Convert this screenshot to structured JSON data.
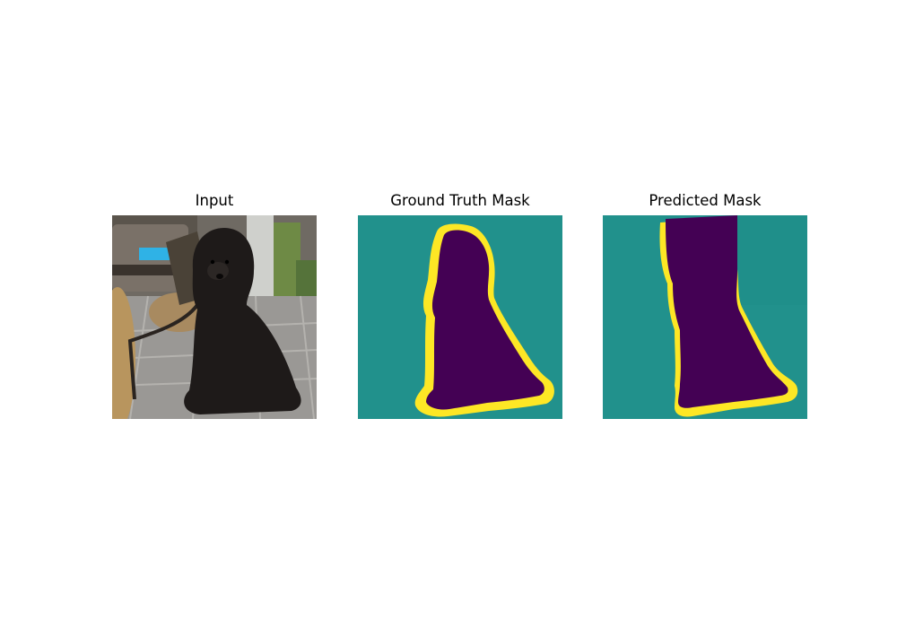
{
  "figure": {
    "panels": [
      {
        "title": "Input"
      },
      {
        "title": "Ground Truth Mask"
      },
      {
        "title": "Predicted Mask"
      }
    ]
  },
  "colors": {
    "background_class": "#21918c",
    "foreground_class": "#440154",
    "boundary_class": "#fde725"
  }
}
